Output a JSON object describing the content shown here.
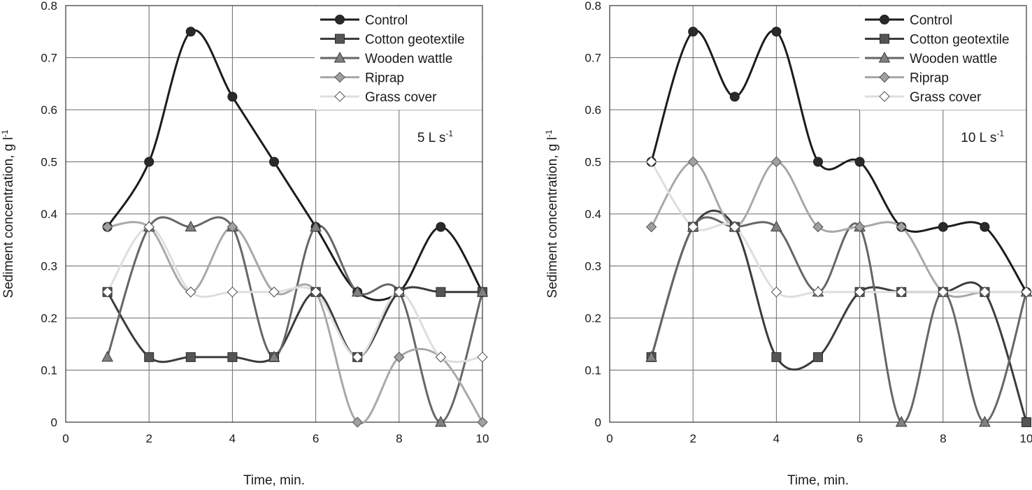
{
  "chart_data": [
    {
      "type": "line",
      "smooth": true,
      "annotation": {
        "text": "5 L s",
        "sup": "-1"
      },
      "xlabel": "Time, min.",
      "ylabel": {
        "text": "Sediment concentration, g l",
        "sup": "-1"
      },
      "xlim": [
        0,
        10
      ],
      "ylim": [
        0,
        0.8
      ],
      "xticks": [
        0,
        2,
        4,
        6,
        8,
        10
      ],
      "yticks": [
        0,
        0.1,
        0.2,
        0.3,
        0.4,
        0.5,
        0.6,
        0.7,
        0.8
      ],
      "grid": true,
      "legend_position": "top-right",
      "x": [
        1,
        2,
        3,
        4,
        5,
        6,
        7,
        8,
        9,
        10
      ],
      "series": [
        {
          "name": "Control",
          "marker": "circle",
          "color": "#1c1c1c",
          "fill": "#2a2a2a",
          "values": [
            0.375,
            0.5,
            0.75,
            0.625,
            0.5,
            0.375,
            0.25,
            0.25,
            0.375,
            0.25
          ]
        },
        {
          "name": "Cotton geotextile",
          "marker": "square",
          "color": "#3c3c3c",
          "fill": "#555555",
          "values": [
            0.25,
            0.125,
            0.125,
            0.125,
            0.125,
            0.25,
            0.125,
            0.25,
            0.25,
            0.25
          ]
        },
        {
          "name": "Wooden wattle",
          "marker": "triangle",
          "color": "#666666",
          "fill": "#808080",
          "values": [
            0.125,
            0.375,
            0.375,
            0.375,
            0.125,
            0.375,
            0.25,
            0.25,
            0.0,
            0.25
          ]
        },
        {
          "name": "Riprap",
          "marker": "diamond",
          "color": "#a8a8a8",
          "fill": "#a0a0a0",
          "values": [
            0.375,
            0.375,
            0.25,
            0.375,
            0.25,
            0.25,
            0.0,
            0.125,
            0.125,
            0.0
          ]
        },
        {
          "name": "Grass cover",
          "marker": "diamond",
          "color": "#dedede",
          "fill": "#ffffff",
          "values": [
            0.25,
            0.375,
            0.25,
            0.25,
            0.25,
            0.25,
            0.125,
            0.25,
            0.125,
            0.125
          ]
        }
      ]
    },
    {
      "type": "line",
      "smooth": true,
      "annotation": {
        "text": "10 L s",
        "sup": "-1"
      },
      "xlabel": "Time, min.",
      "ylabel": {
        "text": "Sediment concentration, g l",
        "sup": "-1"
      },
      "xlim": [
        0,
        10
      ],
      "ylim": [
        0,
        0.8
      ],
      "xticks": [
        0,
        2,
        4,
        6,
        8,
        10
      ],
      "yticks": [
        0,
        0.1,
        0.2,
        0.3,
        0.4,
        0.5,
        0.6,
        0.7,
        0.8
      ],
      "grid": true,
      "legend_position": "top-right",
      "x": [
        1,
        2,
        3,
        4,
        5,
        6,
        7,
        8,
        9,
        10
      ],
      "series": [
        {
          "name": "Control",
          "marker": "circle",
          "color": "#1c1c1c",
          "fill": "#2a2a2a",
          "values": [
            0.5,
            0.75,
            0.625,
            0.75,
            0.5,
            0.5,
            0.375,
            0.375,
            0.375,
            0.25
          ]
        },
        {
          "name": "Cotton geotextile",
          "marker": "square",
          "color": "#3c3c3c",
          "fill": "#555555",
          "values": [
            0.125,
            0.375,
            0.375,
            0.125,
            0.125,
            0.25,
            0.25,
            0.25,
            0.25,
            0.0
          ]
        },
        {
          "name": "Wooden wattle",
          "marker": "triangle",
          "color": "#666666",
          "fill": "#808080",
          "values": [
            0.125,
            0.375,
            0.375,
            0.375,
            0.25,
            0.375,
            0.0,
            0.25,
            0.0,
            0.25
          ]
        },
        {
          "name": "Riprap",
          "marker": "diamond",
          "color": "#a8a8a8",
          "fill": "#a0a0a0",
          "values": [
            0.375,
            0.5,
            0.375,
            0.5,
            0.375,
            0.375,
            0.375,
            0.25,
            0.25,
            0.25
          ]
        },
        {
          "name": "Grass cover",
          "marker": "diamond",
          "color": "#dedede",
          "fill": "#ffffff",
          "values": [
            0.5,
            0.375,
            0.375,
            0.25,
            0.25,
            0.25,
            0.25,
            0.25,
            0.25,
            0.25
          ]
        }
      ]
    }
  ]
}
